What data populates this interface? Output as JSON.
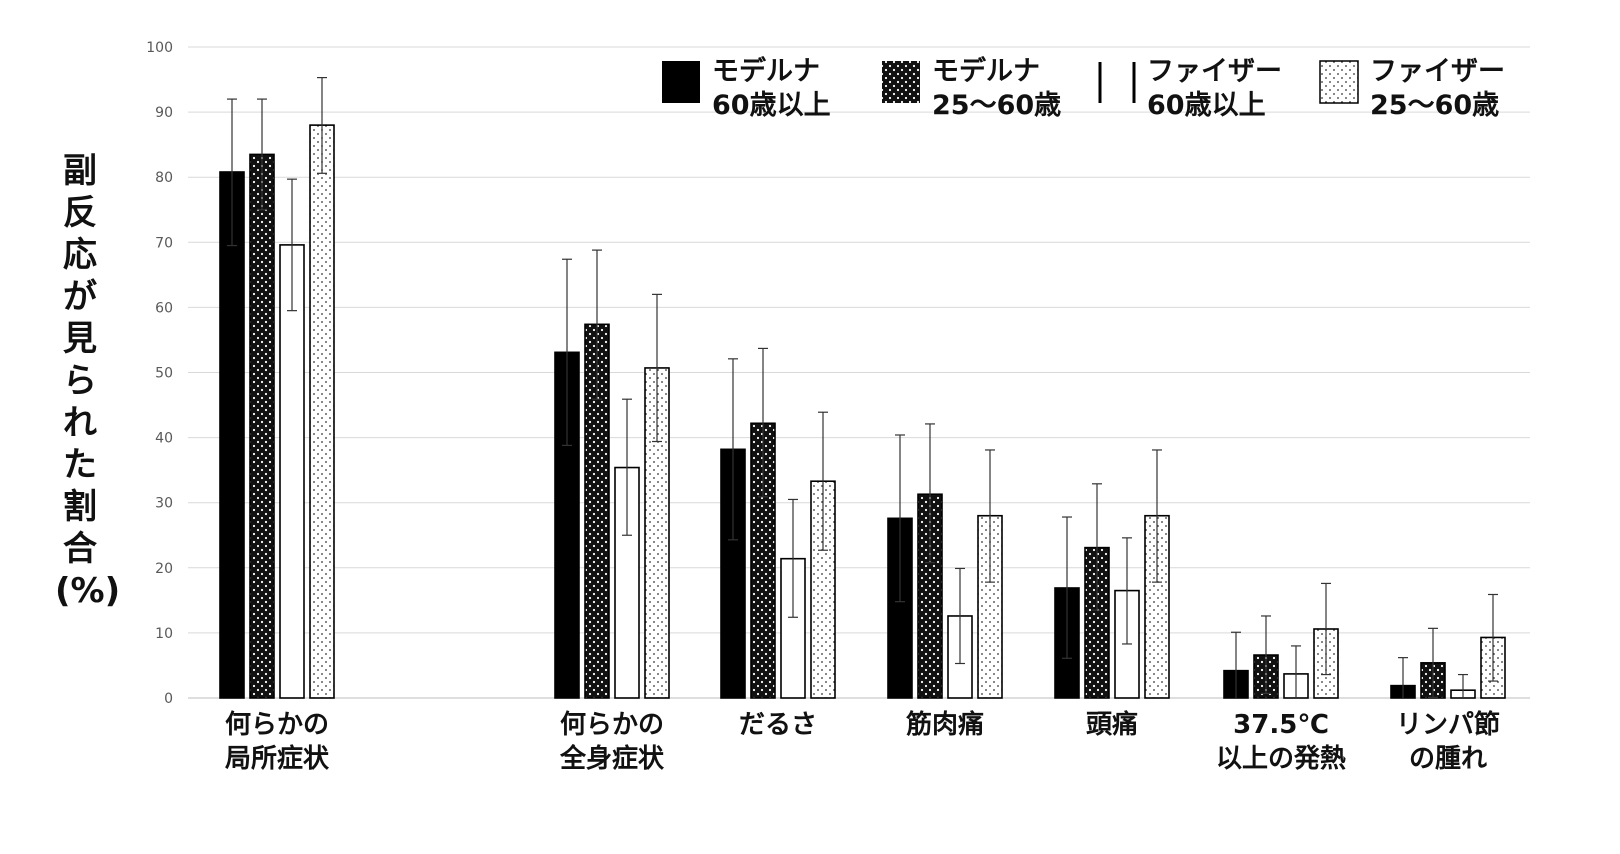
{
  "chart_data": {
    "type": "bar",
    "ylabel": "副反応が見られた割合(%)",
    "ylim": [
      0,
      100
    ],
    "yticks": [
      "0",
      "10",
      "20",
      "30",
      "40",
      "50",
      "60",
      "70",
      "80",
      "90",
      "100"
    ],
    "grid": true,
    "legend_position": "top-right",
    "categories": [
      [
        "何らかの",
        "局所症状"
      ],
      [
        "何らかの",
        "全身症状"
      ],
      [
        "だるさ"
      ],
      [
        "筋肉痛"
      ],
      [
        "頭痛"
      ],
      [
        "37.5℃",
        "以上の発熱"
      ],
      [
        "リンパ節",
        "の腫れ"
      ]
    ],
    "series": [
      {
        "name": [
          "モデルナ",
          "60歳以上"
        ],
        "pattern": "solid",
        "values": [
          80.8,
          53.1,
          38.2,
          27.6,
          16.9,
          4.2,
          1.9
        ],
        "err_low": [
          69.5,
          38.8,
          24.3,
          14.8,
          6.1,
          0,
          0
        ],
        "err_high": [
          92.0,
          67.4,
          52.1,
          40.4,
          27.8,
          10.1,
          6.2
        ]
      },
      {
        "name": [
          "モデルナ",
          "25〜60歳"
        ],
        "pattern": "dark-dots",
        "values": [
          83.5,
          57.4,
          42.2,
          31.3,
          23.1,
          6.6,
          5.4
        ],
        "err_low": [
          75.0,
          45.9,
          30.9,
          20.8,
          13.5,
          0.7,
          0.1
        ],
        "err_high": [
          92.0,
          68.8,
          53.7,
          42.1,
          32.9,
          12.6,
          10.7
        ]
      },
      {
        "name": [
          "ファイザー",
          "60歳以上"
        ],
        "pattern": "white",
        "values": [
          69.6,
          35.4,
          21.4,
          12.6,
          16.5,
          3.7,
          1.2
        ],
        "err_low": [
          59.5,
          25.0,
          12.4,
          5.3,
          8.3,
          0,
          0
        ],
        "err_high": [
          79.7,
          45.9,
          30.5,
          19.9,
          24.6,
          8.0,
          3.6
        ]
      },
      {
        "name": [
          "ファイザー",
          "25〜60歳"
        ],
        "pattern": "light-dots",
        "values": [
          88.0,
          50.7,
          33.3,
          28.0,
          28.0,
          10.6,
          9.3
        ],
        "err_low": [
          80.6,
          39.4,
          22.7,
          17.8,
          17.8,
          3.6,
          2.6
        ],
        "err_high": [
          95.3,
          62.0,
          43.9,
          38.1,
          38.1,
          17.6,
          15.9
        ]
      }
    ]
  }
}
